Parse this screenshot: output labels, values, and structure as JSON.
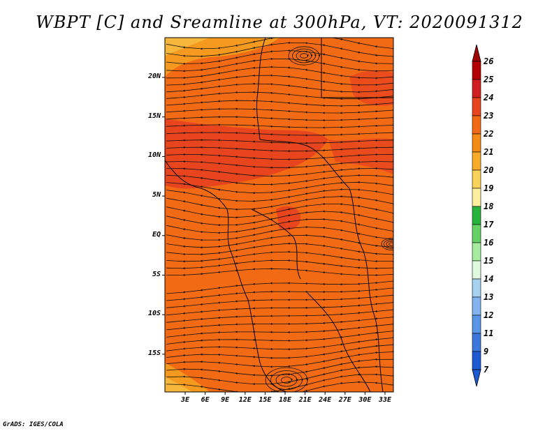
{
  "title": "WBPT [C] and Sreamline at 300hPa, VT: 2020091312",
  "credit": "GrADS: IGES/COLA",
  "map": {
    "lat_labels": [
      "20N",
      "15N",
      "10N",
      "5N",
      "EQ",
      "5S",
      "10S",
      "15S"
    ],
    "lon_labels": [
      "3E",
      "6E",
      "9E",
      "12E",
      "15E",
      "18E",
      "21E",
      "24E",
      "27E",
      "30E",
      "33E"
    ],
    "field_colors": {
      "base": "#f26a14",
      "warm": "#e8451e",
      "cool": "#f59a1e",
      "pale": "#f7b73c"
    }
  },
  "colorbar": {
    "labels": [
      "26",
      "25",
      "24",
      "23",
      "22",
      "21",
      "20",
      "19",
      "18",
      "17",
      "16",
      "15",
      "14",
      "13",
      "12",
      "11",
      "9",
      "7"
    ],
    "colors": [
      "#b40000",
      "#d21e1e",
      "#e8451e",
      "#f26a14",
      "#f58a14",
      "#f7ab28",
      "#fad25a",
      "#fff0a0",
      "#28b43c",
      "#64d264",
      "#a6eba0",
      "#e0fae0",
      "#a6d2f0",
      "#82b4f0",
      "#5a96e6",
      "#3c78dc",
      "#1e5ad2"
    ],
    "top_arrow_color": "#a00000",
    "bottom_arrow_color": "#1e5ad2"
  }
}
